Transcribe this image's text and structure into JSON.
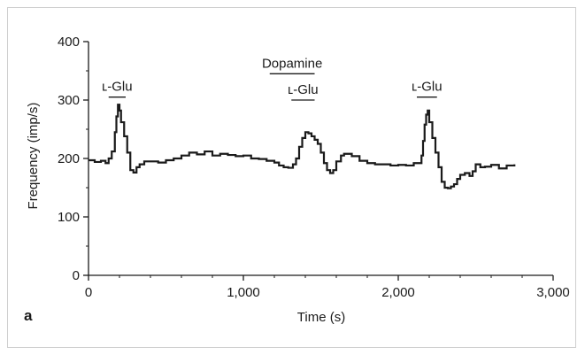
{
  "chart_data": {
    "type": "line",
    "panel_label": "a",
    "xlabel": "Time (s)",
    "ylabel": "Frequency (imp/s)",
    "xlim": [
      0,
      3000
    ],
    "ylim": [
      0,
      400
    ],
    "x_ticks": [
      0,
      1000,
      2000,
      3000
    ],
    "x_tick_labels": [
      "0",
      "1,000",
      "2,000",
      "3,000"
    ],
    "y_ticks": [
      0,
      100,
      200,
      300,
      400
    ],
    "y_tick_labels": [
      "0",
      "100",
      "200",
      "300",
      "400"
    ],
    "grid": false,
    "series": [
      {
        "x": [
          0,
          40,
          80,
          110,
          130,
          150,
          170,
          180,
          190,
          200,
          210,
          230,
          250,
          270,
          290,
          310,
          330,
          360,
          400,
          450,
          500,
          550,
          600,
          650,
          700,
          750,
          800,
          850,
          900,
          950,
          1000,
          1050,
          1100,
          1150,
          1200,
          1230,
          1260,
          1290,
          1320,
          1340,
          1360,
          1380,
          1400,
          1420,
          1440,
          1460,
          1480,
          1500,
          1520,
          1540,
          1560,
          1580,
          1600,
          1630,
          1650,
          1700,
          1750,
          1800,
          1850,
          1900,
          1950,
          2000,
          2050,
          2100,
          2130,
          2150,
          2160,
          2170,
          2180,
          2190,
          2200,
          2220,
          2240,
          2260,
          2280,
          2300,
          2320,
          2340,
          2360,
          2380,
          2400,
          2430,
          2460,
          2480,
          2500,
          2530,
          2560,
          2600,
          2650,
          2700,
          2750
        ],
        "y": [
          197,
          194,
          196,
          192,
          200,
          212,
          245,
          272,
          292,
          282,
          262,
          238,
          210,
          180,
          176,
          185,
          190,
          195,
          195,
          193,
          197,
          200,
          205,
          210,
          207,
          212,
          205,
          208,
          206,
          204,
          205,
          200,
          199,
          196,
          193,
          188,
          185,
          184,
          190,
          200,
          220,
          235,
          245,
          243,
          238,
          232,
          225,
          210,
          192,
          180,
          175,
          180,
          195,
          205,
          208,
          204,
          196,
          192,
          190,
          190,
          188,
          189,
          188,
          192,
          192,
          205,
          230,
          258,
          275,
          282,
          262,
          235,
          210,
          185,
          160,
          150,
          149,
          152,
          156,
          165,
          172,
          175,
          170,
          178,
          190,
          185,
          186,
          189,
          183,
          188,
          190
        ]
      }
    ],
    "annotations": [
      {
        "label": "ʟ-Glu",
        "x_start": 130,
        "x_end": 240,
        "y_bar": 305
      },
      {
        "label": "Dopamine",
        "x_start": 1170,
        "x_end": 1460,
        "y_bar": 345
      },
      {
        "label": "ʟ-Glu",
        "x_start": 1310,
        "x_end": 1460,
        "y_bar": 300
      },
      {
        "label": "ʟ-Glu",
        "x_start": 2120,
        "x_end": 2250,
        "y_bar": 305
      }
    ]
  },
  "colors": {
    "line": "#1a1a1a",
    "axis": "#1a1a1a",
    "frame": "#cfcfcf"
  }
}
